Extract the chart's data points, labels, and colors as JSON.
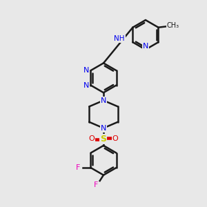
{
  "background_color": "#e8e8e8",
  "bond_color": "#1a1a1a",
  "bond_width": 1.8,
  "atom_colors": {
    "N_blue": "#0000ee",
    "N_nh": "#008080",
    "S": "#cccc00",
    "O": "#dd0000",
    "F": "#ee00bb",
    "C": "#1a1a1a"
  },
  "figsize": [
    3.0,
    3.0
  ],
  "dpi": 100,
  "xlim": [
    0,
    10
  ],
  "ylim": [
    0,
    10
  ]
}
